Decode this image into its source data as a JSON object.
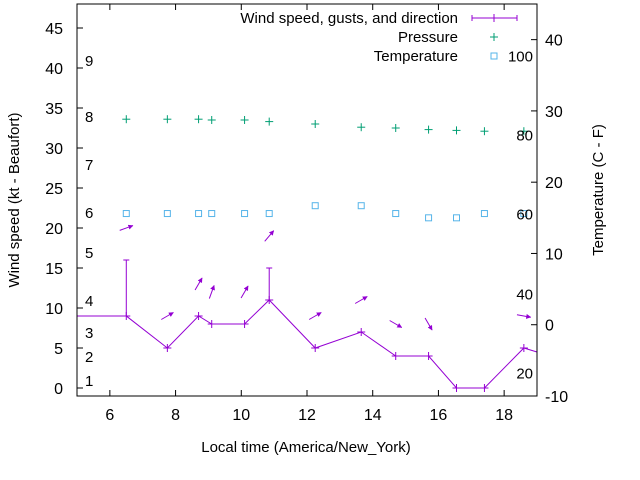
{
  "chart_data": {
    "type": "line",
    "xlabel": "Local time (America/New_York)",
    "ylabel": "Wind speed (kt - Beaufort)",
    "y2label": "Temperature (C - F)",
    "xlim": [
      5,
      19
    ],
    "ylim": [
      -1,
      48
    ],
    "y2lim": [
      -10,
      45
    ],
    "x_ticks": [
      6,
      8,
      10,
      12,
      14,
      16,
      18
    ],
    "y_ticks": [
      0,
      5,
      10,
      15,
      20,
      25,
      30,
      35,
      40,
      45
    ],
    "y2_ticks": [
      -10,
      0,
      10,
      20,
      30,
      40
    ],
    "beaufort_labels": [
      {
        "label": "1",
        "y": 1
      },
      {
        "label": "2",
        "y": 4
      },
      {
        "label": "3",
        "y": 7
      },
      {
        "label": "4",
        "y": 11
      },
      {
        "label": "5",
        "y": 17
      },
      {
        "label": "6",
        "y": 22
      },
      {
        "label": "7",
        "y": 28
      },
      {
        "label": "8",
        "y": 34
      },
      {
        "label": "9",
        "y": 41
      }
    ],
    "fahrenheit_labels": [
      {
        "label": "20",
        "y2": -6.7
      },
      {
        "label": "40",
        "y2": 4.4
      },
      {
        "label": "60",
        "y2": 15.6
      },
      {
        "label": "80",
        "y2": 26.7
      },
      {
        "label": "100",
        "y2": 37.8
      }
    ],
    "legend": {
      "placement": "top-right",
      "entries": [
        {
          "name": "Wind speed, gusts, and direction",
          "color": "#9400d3",
          "marker": "line-plus"
        },
        {
          "name": "Pressure",
          "color": "#009e73",
          "marker": "plus"
        },
        {
          "name": "Temperature",
          "color": "#56b4e9",
          "marker": "square"
        }
      ]
    },
    "series": [
      {
        "name": "Wind speed, gusts, and direction",
        "axis": "y",
        "color": "#9400d3",
        "x": [
          5.0,
          6.5,
          7.75,
          8.7,
          9.1,
          10.1,
          10.85,
          12.25,
          13.65,
          14.7,
          15.7,
          16.55,
          17.4,
          18.6,
          19.0
        ],
        "y": [
          9,
          9,
          5,
          9,
          8,
          8,
          11,
          5,
          7,
          4,
          4,
          0,
          0,
          5,
          4.5
        ],
        "gusts": [
          {
            "x": 6.5,
            "gust": 16
          },
          {
            "x": 10.85,
            "gust": 15
          }
        ],
        "direction_arrows": [
          {
            "x": 6.5,
            "y": 20,
            "dir_deg": 250
          },
          {
            "x": 7.75,
            "y": 9,
            "dir_deg": 240
          },
          {
            "x": 8.7,
            "y": 13,
            "dir_deg": 210
          },
          {
            "x": 9.1,
            "y": 12,
            "dir_deg": 200
          },
          {
            "x": 10.1,
            "y": 12,
            "dir_deg": 210
          },
          {
            "x": 10.85,
            "y": 19,
            "dir_deg": 220
          },
          {
            "x": 12.25,
            "y": 9,
            "dir_deg": 240
          },
          {
            "x": 13.65,
            "y": 11,
            "dir_deg": 240
          },
          {
            "x": 14.7,
            "y": 8,
            "dir_deg": 300
          },
          {
            "x": 15.7,
            "y": 8,
            "dir_deg": 330
          },
          {
            "x": 18.6,
            "y": 9,
            "dir_deg": 280
          }
        ]
      },
      {
        "name": "Pressure",
        "axis": "y",
        "color": "#009e73",
        "marker": "plus",
        "x": [
          6.5,
          7.75,
          8.7,
          9.1,
          10.1,
          10.85,
          12.25,
          13.65,
          14.7,
          15.7,
          16.55,
          17.4,
          18.6
        ],
        "y": [
          33.6,
          33.6,
          33.6,
          33.5,
          33.5,
          33.3,
          33.0,
          32.6,
          32.5,
          32.3,
          32.2,
          32.1,
          32.1
        ]
      },
      {
        "name": "Temperature",
        "axis": "y2",
        "color": "#56b4e9",
        "marker": "square",
        "x": [
          6.5,
          7.75,
          8.7,
          9.1,
          10.1,
          10.85,
          12.25,
          13.65,
          14.7,
          15.7,
          16.55,
          17.4,
          18.6
        ],
        "y": [
          15.6,
          15.6,
          15.6,
          15.6,
          15.6,
          15.6,
          16.7,
          16.7,
          15.6,
          15.0,
          15.0,
          15.6,
          15.6
        ]
      }
    ]
  }
}
